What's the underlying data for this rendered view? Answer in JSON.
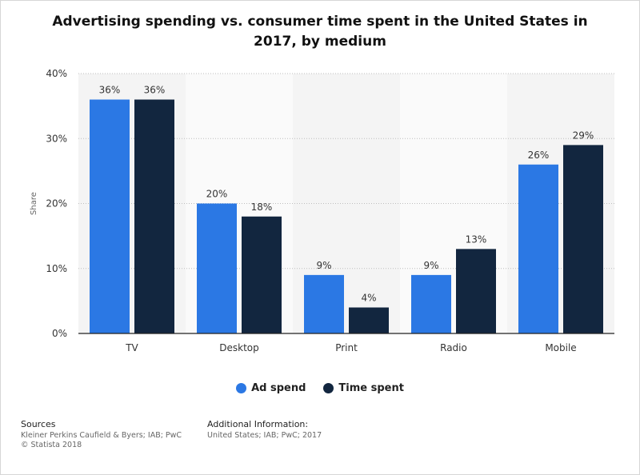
{
  "title": "Advertising spending vs. consumer time spent in the United States in 2017, by medium",
  "chart_data": {
    "type": "bar",
    "categories": [
      "TV",
      "Desktop",
      "Print",
      "Radio",
      "Mobile"
    ],
    "series": [
      {
        "name": "Ad spend",
        "values": [
          36,
          20,
          9,
          9,
          26
        ],
        "color": "#2b78e4"
      },
      {
        "name": "Time spent",
        "values": [
          36,
          18,
          4,
          13,
          29
        ],
        "color": "#12263f"
      }
    ],
    "value_format": "{v}%",
    "ylabel": "Share",
    "xlabel": "",
    "ylim": [
      0,
      40
    ],
    "yticks": [
      0,
      10,
      20,
      30,
      40
    ],
    "ytick_labels": [
      "0%",
      "10%",
      "20%",
      "30%",
      "40%"
    ],
    "grid": "horizontal dotted",
    "legend_position": "bottom-center"
  },
  "legend": {
    "items": [
      {
        "label": "Ad spend",
        "color": "#2b78e4"
      },
      {
        "label": "Time spent",
        "color": "#12263f"
      }
    ]
  },
  "footer": {
    "sources_heading": "Sources",
    "sources_line1": "Kleiner Perkins Caufield & Byers; IAB; PwC",
    "sources_line2": "© Statista 2018",
    "additional_heading": "Additional Information:",
    "additional_line1": "United States; IAB; PwC; 2017"
  }
}
